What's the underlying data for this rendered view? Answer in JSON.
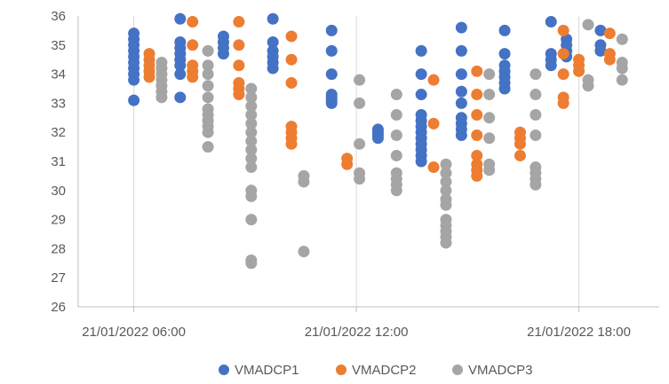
{
  "chart_data": {
    "type": "scatter",
    "title": "",
    "xlabel": "",
    "ylabel": "",
    "ylim": [
      26,
      36
    ],
    "yticks": [
      26,
      27,
      28,
      29,
      30,
      31,
      32,
      33,
      34,
      35,
      36
    ],
    "xlim": [
      "21/01/2022 04:30",
      "21/01/2022 20:10"
    ],
    "xticks": [
      "21/01/2022 06:00",
      "21/01/2022 12:00",
      "21/01/2022 18:00"
    ],
    "grid": "vertical",
    "legend": "bottom",
    "series": [
      {
        "name": "VMADCP1",
        "color": "#4472C4",
        "points": [
          [
            "21/01/2022 06:00",
            35.4
          ],
          [
            "21/01/2022 06:00",
            35.2
          ],
          [
            "21/01/2022 06:00",
            35.0
          ],
          [
            "21/01/2022 06:00",
            34.8
          ],
          [
            "21/01/2022 06:00",
            34.6
          ],
          [
            "21/01/2022 06:00",
            34.4
          ],
          [
            "21/01/2022 06:00",
            34.2
          ],
          [
            "21/01/2022 06:00",
            34.0
          ],
          [
            "21/01/2022 06:00",
            33.8
          ],
          [
            "21/01/2022 06:00",
            33.1
          ],
          [
            "21/01/2022 07:15",
            35.9
          ],
          [
            "21/01/2022 07:15",
            35.1
          ],
          [
            "21/01/2022 07:15",
            34.9
          ],
          [
            "21/01/2022 07:15",
            34.7
          ],
          [
            "21/01/2022 07:15",
            34.5
          ],
          [
            "21/01/2022 07:15",
            34.3
          ],
          [
            "21/01/2022 07:15",
            34.0
          ],
          [
            "21/01/2022 07:15",
            33.2
          ],
          [
            "21/01/2022 08:25",
            35.3
          ],
          [
            "21/01/2022 08:25",
            35.1
          ],
          [
            "21/01/2022 08:25",
            34.9
          ],
          [
            "21/01/2022 08:25",
            34.7
          ],
          [
            "21/01/2022 09:45",
            35.9
          ],
          [
            "21/01/2022 09:45",
            35.1
          ],
          [
            "21/01/2022 09:45",
            34.8
          ],
          [
            "21/01/2022 09:45",
            34.6
          ],
          [
            "21/01/2022 09:45",
            34.4
          ],
          [
            "21/01/2022 09:45",
            34.2
          ],
          [
            "21/01/2022 11:20",
            35.5
          ],
          [
            "21/01/2022 11:20",
            34.8
          ],
          [
            "21/01/2022 11:20",
            34.0
          ],
          [
            "21/01/2022 11:20",
            33.3
          ],
          [
            "21/01/2022 11:20",
            33.2
          ],
          [
            "21/01/2022 11:20",
            33.1
          ],
          [
            "21/01/2022 11:20",
            33.0
          ],
          [
            "21/01/2022 12:35",
            32.1
          ],
          [
            "21/01/2022 12:35",
            32.0
          ],
          [
            "21/01/2022 12:35",
            31.9
          ],
          [
            "21/01/2022 12:35",
            31.8
          ],
          [
            "21/01/2022 13:45",
            34.8
          ],
          [
            "21/01/2022 13:45",
            34.0
          ],
          [
            "21/01/2022 13:45",
            33.3
          ],
          [
            "21/01/2022 13:45",
            32.6
          ],
          [
            "21/01/2022 13:45",
            32.4
          ],
          [
            "21/01/2022 13:45",
            32.2
          ],
          [
            "21/01/2022 13:45",
            32.0
          ],
          [
            "21/01/2022 13:45",
            31.8
          ],
          [
            "21/01/2022 13:45",
            31.6
          ],
          [
            "21/01/2022 13:45",
            31.4
          ],
          [
            "21/01/2022 13:45",
            31.2
          ],
          [
            "21/01/2022 13:45",
            31.0
          ],
          [
            "21/01/2022 14:50",
            35.6
          ],
          [
            "21/01/2022 14:50",
            34.8
          ],
          [
            "21/01/2022 14:50",
            34.0
          ],
          [
            "21/01/2022 14:50",
            33.4
          ],
          [
            "21/01/2022 14:50",
            33.0
          ],
          [
            "21/01/2022 14:50",
            32.5
          ],
          [
            "21/01/2022 14:50",
            32.3
          ],
          [
            "21/01/2022 14:50",
            32.1
          ],
          [
            "21/01/2022 14:50",
            31.9
          ],
          [
            "21/01/2022 16:00",
            35.5
          ],
          [
            "21/01/2022 16:00",
            34.7
          ],
          [
            "21/01/2022 16:00",
            34.3
          ],
          [
            "21/01/2022 16:00",
            34.1
          ],
          [
            "21/01/2022 16:00",
            33.9
          ],
          [
            "21/01/2022 16:00",
            33.7
          ],
          [
            "21/01/2022 16:00",
            33.5
          ],
          [
            "21/01/2022 17:15",
            35.8
          ],
          [
            "21/01/2022 17:15",
            34.7
          ],
          [
            "21/01/2022 17:15",
            34.5
          ],
          [
            "21/01/2022 17:15",
            34.3
          ],
          [
            "21/01/2022 17:40",
            35.2
          ],
          [
            "21/01/2022 17:40",
            35.0
          ],
          [
            "21/01/2022 17:40",
            34.8
          ],
          [
            "21/01/2022 17:40",
            34.6
          ],
          [
            "21/01/2022 18:35",
            35.5
          ],
          [
            "21/01/2022 18:35",
            35.0
          ],
          [
            "21/01/2022 18:35",
            34.8
          ]
        ]
      },
      {
        "name": "VMADCP2",
        "color": "#ED7D31",
        "points": [
          [
            "21/01/2022 06:25",
            34.7
          ],
          [
            "21/01/2022 06:25",
            34.5
          ],
          [
            "21/01/2022 06:25",
            34.3
          ],
          [
            "21/01/2022 06:25",
            34.1
          ],
          [
            "21/01/2022 06:25",
            33.9
          ],
          [
            "21/01/2022 07:35",
            35.8
          ],
          [
            "21/01/2022 07:35",
            35.0
          ],
          [
            "21/01/2022 07:35",
            34.3
          ],
          [
            "21/01/2022 07:35",
            34.1
          ],
          [
            "21/01/2022 07:35",
            33.9
          ],
          [
            "21/01/2022 08:50",
            35.8
          ],
          [
            "21/01/2022 08:50",
            35.0
          ],
          [
            "21/01/2022 08:50",
            34.3
          ],
          [
            "21/01/2022 08:50",
            33.7
          ],
          [
            "21/01/2022 08:50",
            33.5
          ],
          [
            "21/01/2022 08:50",
            33.3
          ],
          [
            "21/01/2022 10:15",
            35.3
          ],
          [
            "21/01/2022 10:15",
            34.5
          ],
          [
            "21/01/2022 10:15",
            33.7
          ],
          [
            "21/01/2022 10:15",
            32.2
          ],
          [
            "21/01/2022 10:15",
            32.0
          ],
          [
            "21/01/2022 10:15",
            31.8
          ],
          [
            "21/01/2022 10:15",
            31.6
          ],
          [
            "21/01/2022 11:45",
            31.1
          ],
          [
            "21/01/2022 11:45",
            30.9
          ],
          [
            "21/01/2022 14:05",
            33.8
          ],
          [
            "21/01/2022 14:05",
            32.3
          ],
          [
            "21/01/2022 14:05",
            30.8
          ],
          [
            "21/01/2022 15:15",
            34.1
          ],
          [
            "21/01/2022 15:15",
            33.3
          ],
          [
            "21/01/2022 15:15",
            32.6
          ],
          [
            "21/01/2022 15:15",
            31.9
          ],
          [
            "21/01/2022 15:15",
            31.2
          ],
          [
            "21/01/2022 15:15",
            30.9
          ],
          [
            "21/01/2022 15:15",
            30.7
          ],
          [
            "21/01/2022 15:15",
            30.5
          ],
          [
            "21/01/2022 16:25",
            32.0
          ],
          [
            "21/01/2022 16:25",
            31.8
          ],
          [
            "21/01/2022 16:25",
            31.6
          ],
          [
            "21/01/2022 16:25",
            31.2
          ],
          [
            "21/01/2022 17:35",
            35.5
          ],
          [
            "21/01/2022 17:35",
            34.7
          ],
          [
            "21/01/2022 17:35",
            34.0
          ],
          [
            "21/01/2022 17:35",
            33.2
          ],
          [
            "21/01/2022 17:35",
            33.0
          ],
          [
            "21/01/2022 18:00",
            34.5
          ],
          [
            "21/01/2022 18:00",
            34.3
          ],
          [
            "21/01/2022 18:00",
            34.1
          ],
          [
            "21/01/2022 18:50",
            35.4
          ],
          [
            "21/01/2022 18:50",
            34.7
          ],
          [
            "21/01/2022 18:50",
            34.5
          ]
        ]
      },
      {
        "name": "VMADCP3",
        "color": "#A5A5A5",
        "points": [
          [
            "21/01/2022 06:45",
            34.4
          ],
          [
            "21/01/2022 06:45",
            34.2
          ],
          [
            "21/01/2022 06:45",
            34.0
          ],
          [
            "21/01/2022 06:45",
            33.8
          ],
          [
            "21/01/2022 06:45",
            33.6
          ],
          [
            "21/01/2022 06:45",
            33.4
          ],
          [
            "21/01/2022 06:45",
            33.2
          ],
          [
            "21/01/2022 08:00",
            34.8
          ],
          [
            "21/01/2022 08:00",
            34.3
          ],
          [
            "21/01/2022 08:00",
            34.0
          ],
          [
            "21/01/2022 08:00",
            33.6
          ],
          [
            "21/01/2022 08:00",
            33.2
          ],
          [
            "21/01/2022 08:00",
            32.8
          ],
          [
            "21/01/2022 08:00",
            32.6
          ],
          [
            "21/01/2022 08:00",
            32.4
          ],
          [
            "21/01/2022 08:00",
            32.2
          ],
          [
            "21/01/2022 08:00",
            32.0
          ],
          [
            "21/01/2022 08:00",
            31.5
          ],
          [
            "21/01/2022 09:10",
            33.5
          ],
          [
            "21/01/2022 09:10",
            33.2
          ],
          [
            "21/01/2022 09:10",
            32.9
          ],
          [
            "21/01/2022 09:10",
            32.6
          ],
          [
            "21/01/2022 09:10",
            32.3
          ],
          [
            "21/01/2022 09:10",
            32.0
          ],
          [
            "21/01/2022 09:10",
            31.7
          ],
          [
            "21/01/2022 09:10",
            31.4
          ],
          [
            "21/01/2022 09:10",
            31.1
          ],
          [
            "21/01/2022 09:10",
            30.8
          ],
          [
            "21/01/2022 09:10",
            30.0
          ],
          [
            "21/01/2022 09:10",
            29.8
          ],
          [
            "21/01/2022 09:10",
            29.0
          ],
          [
            "21/01/2022 09:10",
            27.6
          ],
          [
            "21/01/2022 09:10",
            27.5
          ],
          [
            "21/01/2022 10:35",
            30.5
          ],
          [
            "21/01/2022 10:35",
            30.3
          ],
          [
            "21/01/2022 10:35",
            27.9
          ],
          [
            "21/01/2022 12:05",
            33.8
          ],
          [
            "21/01/2022 12:05",
            33.0
          ],
          [
            "21/01/2022 12:05",
            31.6
          ],
          [
            "21/01/2022 12:05",
            30.6
          ],
          [
            "21/01/2022 12:05",
            30.4
          ],
          [
            "21/01/2022 13:05",
            33.3
          ],
          [
            "21/01/2022 13:05",
            32.6
          ],
          [
            "21/01/2022 13:05",
            31.9
          ],
          [
            "21/01/2022 13:05",
            31.2
          ],
          [
            "21/01/2022 13:05",
            30.6
          ],
          [
            "21/01/2022 13:05",
            30.4
          ],
          [
            "21/01/2022 13:05",
            30.2
          ],
          [
            "21/01/2022 13:05",
            30.0
          ],
          [
            "21/01/2022 14:25",
            30.9
          ],
          [
            "21/01/2022 14:25",
            30.6
          ],
          [
            "21/01/2022 14:25",
            30.3
          ],
          [
            "21/01/2022 14:25",
            30.0
          ],
          [
            "21/01/2022 14:25",
            29.7
          ],
          [
            "21/01/2022 14:25",
            29.5
          ],
          [
            "21/01/2022 14:25",
            29.0
          ],
          [
            "21/01/2022 14:25",
            28.8
          ],
          [
            "21/01/2022 14:25",
            28.6
          ],
          [
            "21/01/2022 14:25",
            28.4
          ],
          [
            "21/01/2022 14:25",
            28.2
          ],
          [
            "21/01/2022 15:35",
            34.0
          ],
          [
            "21/01/2022 15:35",
            33.3
          ],
          [
            "21/01/2022 15:35",
            32.5
          ],
          [
            "21/01/2022 15:35",
            31.8
          ],
          [
            "21/01/2022 15:35",
            30.9
          ],
          [
            "21/01/2022 15:35",
            30.7
          ],
          [
            "21/01/2022 16:50",
            34.0
          ],
          [
            "21/01/2022 16:50",
            33.3
          ],
          [
            "21/01/2022 16:50",
            32.6
          ],
          [
            "21/01/2022 16:50",
            31.9
          ],
          [
            "21/01/2022 16:50",
            30.8
          ],
          [
            "21/01/2022 16:50",
            30.6
          ],
          [
            "21/01/2022 16:50",
            30.4
          ],
          [
            "21/01/2022 16:50",
            30.2
          ],
          [
            "21/01/2022 18:15",
            35.7
          ],
          [
            "21/01/2022 18:15",
            33.8
          ],
          [
            "21/01/2022 18:15",
            33.6
          ],
          [
            "21/01/2022 19:10",
            35.2
          ],
          [
            "21/01/2022 19:10",
            34.4
          ],
          [
            "21/01/2022 19:10",
            34.2
          ],
          [
            "21/01/2022 19:10",
            33.8
          ]
        ]
      }
    ]
  }
}
